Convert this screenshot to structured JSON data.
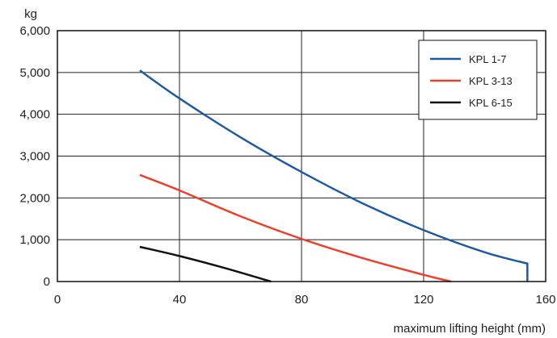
{
  "chart_data": {
    "type": "line",
    "title": "",
    "ylabel": "kg",
    "xlabel": "maximum lifting height (mm)",
    "xlim": [
      0,
      160
    ],
    "ylim": [
      0,
      6000
    ],
    "x_ticks": [
      0,
      40,
      80,
      120,
      160
    ],
    "x_tick_labels": [
      "0",
      "40",
      "80",
      "120",
      "160"
    ],
    "y_ticks": [
      0,
      1000,
      2000,
      3000,
      4000,
      5000,
      6000
    ],
    "y_tick_labels": [
      "0",
      "1,000",
      "2,000",
      "3,000",
      "4,000",
      "5,000",
      "6,000"
    ],
    "grid": true,
    "legend_position": "top-right",
    "series": [
      {
        "name": "KPL 1-7",
        "color": "#1f5aa0",
        "points": [
          [
            27,
            5050
          ],
          [
            40,
            4380
          ],
          [
            60,
            3450
          ],
          [
            80,
            2620
          ],
          [
            100,
            1870
          ],
          [
            120,
            1230
          ],
          [
            140,
            700
          ],
          [
            154,
            430
          ],
          [
            154,
            0
          ]
        ]
      },
      {
        "name": "KPL 3-13",
        "color": "#e8412c",
        "points": [
          [
            27,
            2550
          ],
          [
            40,
            2180
          ],
          [
            60,
            1560
          ],
          [
            80,
            1020
          ],
          [
            100,
            560
          ],
          [
            120,
            160
          ],
          [
            129,
            0
          ]
        ]
      },
      {
        "name": "KPL 6-15",
        "color": "#111111",
        "points": [
          [
            27,
            830
          ],
          [
            40,
            610
          ],
          [
            55,
            320
          ],
          [
            70,
            0
          ]
        ]
      }
    ]
  }
}
